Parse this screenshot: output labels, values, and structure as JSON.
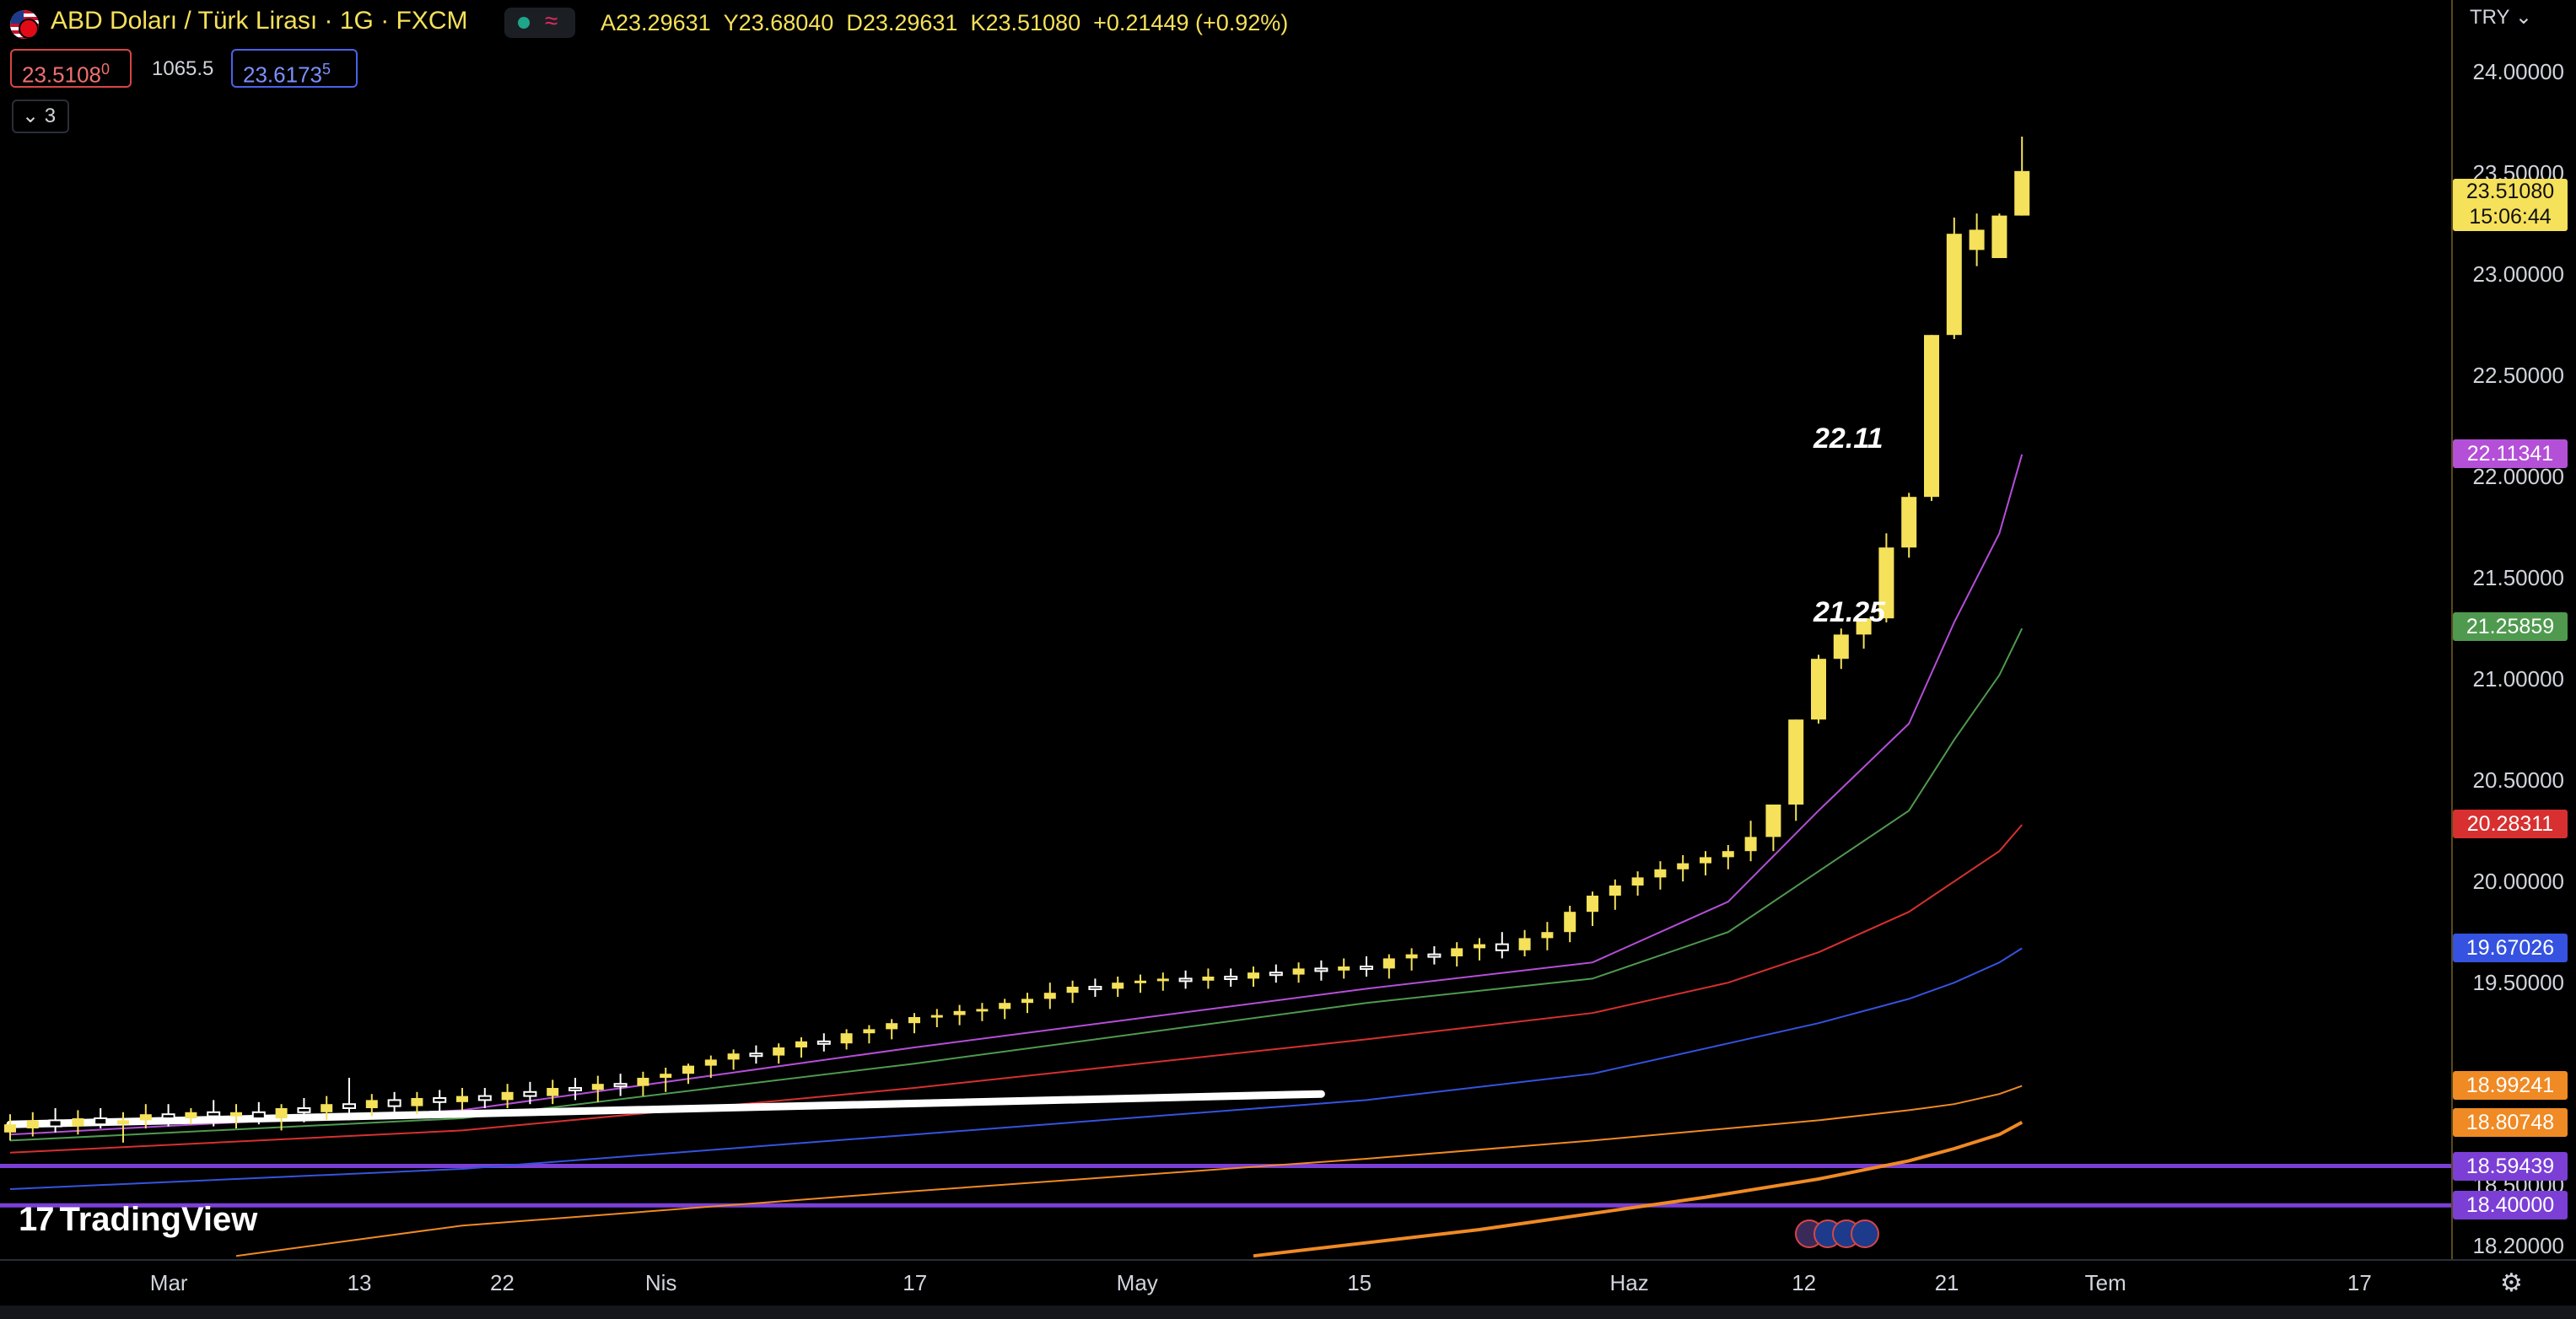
{
  "header": {
    "title": "ABD Doları / Türk Lirası · 1G · FXCM",
    "ohlc": {
      "open_label": "A",
      "open": "23.29631",
      "high_label": "Y",
      "high": "23.68040",
      "low_label": "D",
      "low": "23.29631",
      "close_label": "K",
      "close": "23.51080",
      "change": "+0.21449 (+0.92%)"
    },
    "sell_price": "23.5108",
    "sell_price_sup": "0",
    "spread": "1065.5",
    "buy_price": "23.6173",
    "buy_price_sup": "5",
    "collapse_count": "3",
    "wave_glyph": "≈"
  },
  "currency": "TRY",
  "current_price": {
    "value": "23.51080",
    "countdown": "15:06:44",
    "color": "#f5e15a"
  },
  "annotations": [
    {
      "text": "22.11",
      "price": 22.11,
      "date_index": 101
    },
    {
      "text": "21.25",
      "price": 21.25,
      "date_index": 101
    }
  ],
  "brand": "TradingView",
  "chart_data": {
    "type": "candlestick",
    "y_range": [
      18.13,
      24.35
    ],
    "y_ticks": [
      "24.00000",
      "23.50000",
      "23.00000",
      "22.50000",
      "22.00000",
      "21.50000",
      "21.00000",
      "20.50000",
      "20.00000",
      "19.50000",
      "18.50000",
      "18.20000"
    ],
    "y_tick_values": [
      24.0,
      23.5,
      23.0,
      22.5,
      22.0,
      21.5,
      21.0,
      20.5,
      20.0,
      19.5,
      18.5,
      18.2
    ],
    "x_ticks": [
      {
        "label": "Mar",
        "day": 10
      },
      {
        "label": "13",
        "day": 22
      },
      {
        "label": "22",
        "day": 31
      },
      {
        "label": "Nis",
        "day": 41
      },
      {
        "label": "17",
        "day": 57
      },
      {
        "label": "May",
        "day": 71
      },
      {
        "label": "15",
        "day": 85
      },
      {
        "label": "Haz",
        "day": 102
      },
      {
        "label": "12",
        "day": 113
      },
      {
        "label": "21",
        "day": 122
      },
      {
        "label": "Tem",
        "day": 132
      },
      {
        "label": "17",
        "day": 148
      }
    ],
    "price_tags": [
      {
        "value": "22.11341",
        "price": 22.11341,
        "color": "#b44fd8"
      },
      {
        "value": "21.25859",
        "price": 21.25859,
        "color": "#4f9a4f"
      },
      {
        "value": "20.28311",
        "price": 20.28311,
        "color": "#d83030"
      },
      {
        "value": "19.67026",
        "price": 19.67026,
        "color": "#3553e0"
      },
      {
        "value": "18.99241",
        "price": 18.99241,
        "color": "#f08a24"
      },
      {
        "value": "18.80748",
        "price": 18.80748,
        "color": "#f08a24"
      },
      {
        "value": "18.59439",
        "price": 18.59439,
        "color": "#7b3fd6"
      },
      {
        "value": "18.40000",
        "price": 18.4,
        "color": "#7b3fd6"
      }
    ],
    "horizontal_lines": [
      {
        "price": 18.59439,
        "color": "#7b3fd6"
      },
      {
        "price": 18.4,
        "color": "#7b3fd6"
      }
    ],
    "trend_line": {
      "from": {
        "day": 0,
        "price": 18.8
      },
      "to": {
        "day": 58,
        "price": 18.95
      },
      "color": "#ffffff"
    },
    "candles": [
      {
        "d": 0,
        "o": 18.76,
        "h": 18.85,
        "l": 18.72,
        "c": 18.8
      },
      {
        "d": 1,
        "o": 18.78,
        "h": 18.86,
        "l": 18.74,
        "c": 18.82
      },
      {
        "d": 2,
        "o": 18.82,
        "h": 18.88,
        "l": 18.76,
        "c": 18.79
      },
      {
        "d": 3,
        "o": 18.79,
        "h": 18.87,
        "l": 18.75,
        "c": 18.83
      },
      {
        "d": 4,
        "o": 18.83,
        "h": 18.88,
        "l": 18.78,
        "c": 18.8
      },
      {
        "d": 5,
        "o": 18.8,
        "h": 18.86,
        "l": 18.71,
        "c": 18.82
      },
      {
        "d": 6,
        "o": 18.82,
        "h": 18.9,
        "l": 18.78,
        "c": 18.85
      },
      {
        "d": 7,
        "o": 18.85,
        "h": 18.9,
        "l": 18.79,
        "c": 18.83
      },
      {
        "d": 8,
        "o": 18.83,
        "h": 18.88,
        "l": 18.8,
        "c": 18.86
      },
      {
        "d": 9,
        "o": 18.86,
        "h": 18.92,
        "l": 18.79,
        "c": 18.84
      },
      {
        "d": 10,
        "o": 18.84,
        "h": 18.9,
        "l": 18.78,
        "c": 18.86
      },
      {
        "d": 11,
        "o": 18.86,
        "h": 18.91,
        "l": 18.8,
        "c": 18.83
      },
      {
        "d": 12,
        "o": 18.83,
        "h": 18.9,
        "l": 18.77,
        "c": 18.88
      },
      {
        "d": 13,
        "o": 18.88,
        "h": 18.93,
        "l": 18.81,
        "c": 18.86
      },
      {
        "d": 14,
        "o": 18.86,
        "h": 18.94,
        "l": 18.82,
        "c": 18.9
      },
      {
        "d": 15,
        "o": 18.9,
        "h": 19.03,
        "l": 18.82,
        "c": 18.88
      },
      {
        "d": 16,
        "o": 18.88,
        "h": 18.95,
        "l": 18.84,
        "c": 18.92
      },
      {
        "d": 17,
        "o": 18.92,
        "h": 18.96,
        "l": 18.85,
        "c": 18.89
      },
      {
        "d": 18,
        "o": 18.89,
        "h": 18.96,
        "l": 18.85,
        "c": 18.93
      },
      {
        "d": 19,
        "o": 18.93,
        "h": 18.97,
        "l": 18.86,
        "c": 18.91
      },
      {
        "d": 20,
        "o": 18.91,
        "h": 18.98,
        "l": 18.87,
        "c": 18.94
      },
      {
        "d": 21,
        "o": 18.94,
        "h": 18.98,
        "l": 18.88,
        "c": 18.92
      },
      {
        "d": 22,
        "o": 18.92,
        "h": 19.0,
        "l": 18.88,
        "c": 18.96
      },
      {
        "d": 23,
        "o": 18.96,
        "h": 19.01,
        "l": 18.9,
        "c": 18.94
      },
      {
        "d": 24,
        "o": 18.94,
        "h": 19.02,
        "l": 18.9,
        "c": 18.98
      },
      {
        "d": 25,
        "o": 18.98,
        "h": 19.03,
        "l": 18.92,
        "c": 18.97
      },
      {
        "d": 26,
        "o": 18.97,
        "h": 19.04,
        "l": 18.91,
        "c": 19.0
      },
      {
        "d": 27,
        "o": 19.0,
        "h": 19.05,
        "l": 18.94,
        "c": 18.99
      },
      {
        "d": 28,
        "o": 18.99,
        "h": 19.06,
        "l": 18.94,
        "c": 19.03
      },
      {
        "d": 29,
        "o": 19.03,
        "h": 19.08,
        "l": 18.96,
        "c": 19.05
      },
      {
        "d": 30,
        "o": 19.05,
        "h": 19.1,
        "l": 19.0,
        "c": 19.09
      },
      {
        "d": 31,
        "o": 19.09,
        "h": 19.14,
        "l": 19.03,
        "c": 19.12
      },
      {
        "d": 32,
        "o": 19.12,
        "h": 19.17,
        "l": 19.07,
        "c": 19.15
      },
      {
        "d": 33,
        "o": 19.15,
        "h": 19.19,
        "l": 19.1,
        "c": 19.14
      },
      {
        "d": 34,
        "o": 19.14,
        "h": 19.2,
        "l": 19.1,
        "c": 19.18
      },
      {
        "d": 35,
        "o": 19.18,
        "h": 19.23,
        "l": 19.13,
        "c": 19.21
      },
      {
        "d": 36,
        "o": 19.21,
        "h": 19.25,
        "l": 19.16,
        "c": 19.2
      },
      {
        "d": 37,
        "o": 19.2,
        "h": 19.27,
        "l": 19.17,
        "c": 19.25
      },
      {
        "d": 38,
        "o": 19.25,
        "h": 19.29,
        "l": 19.2,
        "c": 19.27
      },
      {
        "d": 39,
        "o": 19.27,
        "h": 19.32,
        "l": 19.22,
        "c": 19.3
      },
      {
        "d": 40,
        "o": 19.3,
        "h": 19.35,
        "l": 19.25,
        "c": 19.33
      },
      {
        "d": 41,
        "o": 19.33,
        "h": 19.37,
        "l": 19.28,
        "c": 19.34
      },
      {
        "d": 42,
        "o": 19.34,
        "h": 19.39,
        "l": 19.29,
        "c": 19.36
      },
      {
        "d": 43,
        "o": 19.36,
        "h": 19.4,
        "l": 19.31,
        "c": 19.37
      },
      {
        "d": 44,
        "o": 19.37,
        "h": 19.42,
        "l": 19.32,
        "c": 19.4
      },
      {
        "d": 45,
        "o": 19.4,
        "h": 19.45,
        "l": 19.35,
        "c": 19.42
      },
      {
        "d": 46,
        "o": 19.42,
        "h": 19.5,
        "l": 19.37,
        "c": 19.45
      },
      {
        "d": 47,
        "o": 19.45,
        "h": 19.51,
        "l": 19.4,
        "c": 19.48
      },
      {
        "d": 48,
        "o": 19.48,
        "h": 19.52,
        "l": 19.43,
        "c": 19.47
      },
      {
        "d": 49,
        "o": 19.47,
        "h": 19.53,
        "l": 19.43,
        "c": 19.5
      },
      {
        "d": 50,
        "o": 19.5,
        "h": 19.54,
        "l": 19.45,
        "c": 19.51
      },
      {
        "d": 51,
        "o": 19.51,
        "h": 19.55,
        "l": 19.46,
        "c": 19.52
      },
      {
        "d": 52,
        "o": 19.52,
        "h": 19.56,
        "l": 19.47,
        "c": 19.51
      },
      {
        "d": 53,
        "o": 19.51,
        "h": 19.57,
        "l": 19.47,
        "c": 19.53
      },
      {
        "d": 54,
        "o": 19.53,
        "h": 19.57,
        "l": 19.48,
        "c": 19.52
      },
      {
        "d": 55,
        "o": 19.52,
        "h": 19.58,
        "l": 19.48,
        "c": 19.55
      },
      {
        "d": 56,
        "o": 19.55,
        "h": 19.59,
        "l": 19.5,
        "c": 19.54
      },
      {
        "d": 57,
        "o": 19.54,
        "h": 19.6,
        "l": 19.5,
        "c": 19.57
      },
      {
        "d": 58,
        "o": 19.57,
        "h": 19.61,
        "l": 19.51,
        "c": 19.56
      },
      {
        "d": 59,
        "o": 19.56,
        "h": 19.62,
        "l": 19.52,
        "c": 19.58
      },
      {
        "d": 60,
        "o": 19.58,
        "h": 19.63,
        "l": 19.53,
        "c": 19.57
      },
      {
        "d": 61,
        "o": 19.57,
        "h": 19.64,
        "l": 19.52,
        "c": 19.62
      },
      {
        "d": 62,
        "o": 19.62,
        "h": 19.67,
        "l": 19.56,
        "c": 19.64
      },
      {
        "d": 63,
        "o": 19.64,
        "h": 19.68,
        "l": 19.59,
        "c": 19.63
      },
      {
        "d": 64,
        "o": 19.63,
        "h": 19.7,
        "l": 19.58,
        "c": 19.67
      },
      {
        "d": 65,
        "o": 19.67,
        "h": 19.72,
        "l": 19.61,
        "c": 19.69
      },
      {
        "d": 66,
        "o": 19.69,
        "h": 19.75,
        "l": 19.62,
        "c": 19.66
      },
      {
        "d": 67,
        "o": 19.66,
        "h": 19.76,
        "l": 19.63,
        "c": 19.72
      },
      {
        "d": 68,
        "o": 19.72,
        "h": 19.8,
        "l": 19.66,
        "c": 19.75
      },
      {
        "d": 69,
        "o": 19.75,
        "h": 19.88,
        "l": 19.7,
        "c": 19.85
      },
      {
        "d": 70,
        "o": 19.85,
        "h": 19.95,
        "l": 19.78,
        "c": 19.93
      },
      {
        "d": 71,
        "o": 19.93,
        "h": 20.01,
        "l": 19.86,
        "c": 19.98
      },
      {
        "d": 72,
        "o": 19.98,
        "h": 20.05,
        "l": 19.93,
        "c": 20.02
      },
      {
        "d": 73,
        "o": 20.02,
        "h": 20.1,
        "l": 19.96,
        "c": 20.06
      },
      {
        "d": 74,
        "o": 20.06,
        "h": 20.13,
        "l": 20.0,
        "c": 20.09
      },
      {
        "d": 75,
        "o": 20.09,
        "h": 20.15,
        "l": 20.03,
        "c": 20.12
      },
      {
        "d": 76,
        "o": 20.12,
        "h": 20.18,
        "l": 20.06,
        "c": 20.15
      },
      {
        "d": 77,
        "o": 20.15,
        "h": 20.3,
        "l": 20.1,
        "c": 20.22
      },
      {
        "d": 78,
        "o": 20.22,
        "h": 20.35,
        "l": 20.15,
        "c": 20.38
      },
      {
        "d": 79,
        "o": 20.38,
        "h": 20.8,
        "l": 20.3,
        "c": 20.8
      },
      {
        "d": 80,
        "o": 20.8,
        "h": 21.12,
        "l": 20.78,
        "c": 21.1
      },
      {
        "d": 81,
        "o": 21.1,
        "h": 21.25,
        "l": 21.05,
        "c": 21.22
      },
      {
        "d": 82,
        "o": 21.22,
        "h": 21.28,
        "l": 21.15,
        "c": 21.3
      },
      {
        "d": 83,
        "o": 21.3,
        "h": 21.72,
        "l": 21.28,
        "c": 21.65
      },
      {
        "d": 84,
        "o": 21.65,
        "h": 21.92,
        "l": 21.6,
        "c": 21.9
      },
      {
        "d": 85,
        "o": 21.9,
        "h": 22.7,
        "l": 21.88,
        "c": 22.7
      },
      {
        "d": 86,
        "o": 22.7,
        "h": 23.28,
        "l": 22.68,
        "c": 23.2
      },
      {
        "d": 87,
        "o": 23.12,
        "h": 23.3,
        "l": 23.04,
        "c": 23.22
      },
      {
        "d": 88,
        "o": 23.08,
        "h": 23.3,
        "l": 23.08,
        "c": 23.29
      },
      {
        "d": 89,
        "o": 23.29,
        "h": 23.68,
        "l": 23.29,
        "c": 23.51
      }
    ],
    "moving_averages": [
      {
        "color": "#b44fd8",
        "width": 2,
        "points": [
          [
            0,
            18.75
          ],
          [
            20,
            18.87
          ],
          [
            40,
            19.18
          ],
          [
            60,
            19.47
          ],
          [
            70,
            19.6
          ],
          [
            76,
            19.9
          ],
          [
            80,
            20.35
          ],
          [
            84,
            20.78
          ],
          [
            86,
            21.28
          ],
          [
            88,
            21.72
          ],
          [
            89,
            22.11
          ]
        ]
      },
      {
        "color": "#4f9a4f",
        "width": 2,
        "points": [
          [
            0,
            18.72
          ],
          [
            20,
            18.83
          ],
          [
            40,
            19.1
          ],
          [
            60,
            19.4
          ],
          [
            70,
            19.52
          ],
          [
            76,
            19.75
          ],
          [
            80,
            20.05
          ],
          [
            84,
            20.35
          ],
          [
            86,
            20.7
          ],
          [
            88,
            21.02
          ],
          [
            89,
            21.25
          ]
        ]
      },
      {
        "color": "#d83030",
        "width": 2,
        "points": [
          [
            0,
            18.66
          ],
          [
            20,
            18.77
          ],
          [
            40,
            18.98
          ],
          [
            60,
            19.22
          ],
          [
            70,
            19.35
          ],
          [
            76,
            19.5
          ],
          [
            80,
            19.65
          ],
          [
            84,
            19.85
          ],
          [
            86,
            20.0
          ],
          [
            88,
            20.15
          ],
          [
            89,
            20.28
          ]
        ]
      },
      {
        "color": "#3553e0",
        "width": 2,
        "points": [
          [
            0,
            18.48
          ],
          [
            20,
            18.58
          ],
          [
            40,
            18.75
          ],
          [
            60,
            18.92
          ],
          [
            70,
            19.05
          ],
          [
            76,
            19.2
          ],
          [
            80,
            19.3
          ],
          [
            84,
            19.42
          ],
          [
            86,
            19.5
          ],
          [
            88,
            19.6
          ],
          [
            89,
            19.67
          ]
        ]
      },
      {
        "color": "#f08a24",
        "width": 2,
        "points": [
          [
            10,
            18.15
          ],
          [
            20,
            18.3
          ],
          [
            40,
            18.47
          ],
          [
            60,
            18.63
          ],
          [
            70,
            18.72
          ],
          [
            80,
            18.82
          ],
          [
            84,
            18.87
          ],
          [
            86,
            18.9
          ],
          [
            88,
            18.95
          ],
          [
            89,
            18.99
          ]
        ]
      },
      {
        "color": "#f08a24",
        "width": 4,
        "points": [
          [
            55,
            18.15
          ],
          [
            65,
            18.28
          ],
          [
            75,
            18.44
          ],
          [
            80,
            18.53
          ],
          [
            84,
            18.62
          ],
          [
            86,
            18.68
          ],
          [
            88,
            18.75
          ],
          [
            89,
            18.81
          ]
        ]
      }
    ]
  }
}
